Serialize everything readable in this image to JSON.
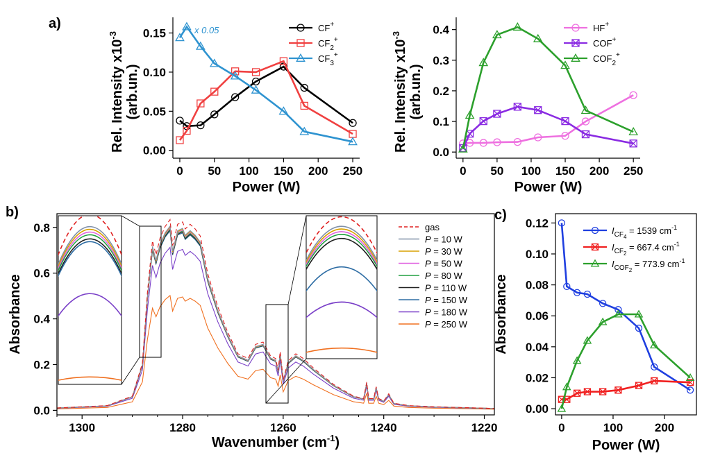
{
  "panel_labels": {
    "a": "a)",
    "b": "b)",
    "c": "c)"
  },
  "colors": {
    "CF+": "#000000",
    "CF2+": "#f04040",
    "CF3+": "#2e93d0",
    "HF+": "#ee70e0",
    "COF+": "#8a2be2",
    "COF2+": "#2ca02c",
    "gas": "#e02020"
  },
  "chart_data": [
    {
      "id": "a-left",
      "type": "line",
      "xlabel": "Power (W)",
      "ylabel_lines": [
        "Rel. Intensity x10",
        "(arb.un.)"
      ],
      "ylabel_exp": "-3",
      "xlim": [
        -10,
        260
      ],
      "ylim": [
        -0.01,
        0.17
      ],
      "xticks": [
        0,
        50,
        100,
        150,
        200,
        250
      ],
      "yticks": [
        0.0,
        0.05,
        0.1,
        0.15
      ],
      "ytick_labels": [
        "0.00",
        "0.05",
        "0.10",
        "0.15"
      ],
      "annotation": "x 0.05",
      "series": [
        {
          "name": "CF",
          "sup": "+",
          "marker": "circle",
          "color": "#000000",
          "x": [
            0,
            10,
            30,
            50,
            80,
            110,
            150,
            180,
            250
          ],
          "y": [
            0.038,
            0.031,
            0.032,
            0.046,
            0.068,
            0.088,
            0.107,
            0.08,
            0.035
          ]
        },
        {
          "name": "CF",
          "sub": "2",
          "sup": "+",
          "marker": "square",
          "color": "#f04040",
          "x": [
            0,
            10,
            30,
            50,
            80,
            110,
            150,
            180,
            250
          ],
          "y": [
            0.013,
            0.025,
            0.06,
            0.075,
            0.101,
            0.1,
            0.114,
            0.057,
            0.021
          ]
        },
        {
          "name": "CF",
          "sub": "3",
          "sup": "+",
          "marker": "triangle",
          "color": "#2e93d0",
          "x": [
            0,
            10,
            30,
            50,
            80,
            110,
            150,
            180,
            250
          ],
          "y": [
            0.144,
            0.158,
            0.133,
            0.111,
            0.095,
            0.077,
            0.05,
            0.024,
            0.011
          ]
        }
      ]
    },
    {
      "id": "a-right",
      "type": "line",
      "xlabel": "Power (W)",
      "ylabel_lines": [
        "Rel. Intensity x10",
        "(arb.un.)"
      ],
      "ylabel_exp": "-3",
      "xlim": [
        -10,
        260
      ],
      "ylim": [
        -0.02,
        0.44
      ],
      "xticks": [
        0,
        50,
        100,
        150,
        200,
        250
      ],
      "yticks": [
        0.0,
        0.1,
        0.2,
        0.3,
        0.4
      ],
      "ytick_labels": [
        "0.0",
        "0.1",
        "0.2",
        "0.3",
        "0.4"
      ],
      "series": [
        {
          "name": "HF",
          "sup": "+",
          "marker": "circle",
          "color": "#ee70e0",
          "x": [
            0,
            10,
            30,
            50,
            80,
            110,
            150,
            180,
            250
          ],
          "y": [
            0.028,
            0.03,
            0.03,
            0.032,
            0.033,
            0.048,
            0.053,
            0.1,
            0.186
          ]
        },
        {
          "name": "COF",
          "sup": "+",
          "marker": "boxx",
          "color": "#8a2be2",
          "x": [
            0,
            10,
            30,
            50,
            80,
            110,
            150,
            180,
            250
          ],
          "y": [
            0.013,
            0.06,
            0.101,
            0.125,
            0.148,
            0.137,
            0.101,
            0.058,
            0.028
          ]
        },
        {
          "name": "COF",
          "sub": "2",
          "sup": "+",
          "marker": "triangle",
          "color": "#2ca02c",
          "x": [
            0,
            10,
            30,
            50,
            80,
            110,
            150,
            180,
            250
          ],
          "y": [
            0.01,
            0.12,
            0.292,
            0.383,
            0.408,
            0.37,
            0.283,
            0.136,
            0.066
          ]
        }
      ]
    },
    {
      "id": "b",
      "type": "line",
      "xlabel": "Wavenumber (cm",
      "xlabel_exp": "-1",
      "xlabel_tail": ")",
      "ylabel": "Absorbance",
      "xlim": [
        1305,
        1218
      ],
      "ylim": [
        -0.02,
        0.86
      ],
      "xticks": [
        1300,
        1280,
        1260,
        1240,
        1220
      ],
      "yticks": [
        0.0,
        0.2,
        0.4,
        0.6,
        0.8
      ],
      "ytick_labels": [
        "0.0",
        "0.2",
        "0.4",
        "0.6",
        "0.8"
      ],
      "legend": [
        {
          "label": "gas",
          "color": "#e02020",
          "dashed": true
        },
        {
          "prefix": "P",
          "label": " = 10 W",
          "color": "#8090a8"
        },
        {
          "prefix": "P",
          "label": " = 30 W",
          "color": "#d9a000"
        },
        {
          "prefix": "P",
          "label": " = 50 W",
          "color": "#e060e0"
        },
        {
          "prefix": "P",
          "label": " = 80 W",
          "color": "#20a040"
        },
        {
          "prefix": "P",
          "label": " = 110 W",
          "color": "#202020"
        },
        {
          "prefix": "P",
          "label": " = 150 W",
          "color": "#2e6da4"
        },
        {
          "prefix": "P",
          "label": " = 180 W",
          "color": "#7a40c8"
        },
        {
          "prefix": "P",
          "label": " = 250 W",
          "color": "#f07020"
        }
      ],
      "spectrum_scales": [
        1.03,
        0.995,
        0.99,
        0.985,
        0.98,
        0.975,
        0.97,
        0.88,
        0.62
      ],
      "spectrum_base": {
        "x": [
          1305,
          1295,
          1290,
          1288,
          1287,
          1286,
          1285.3,
          1284.5,
          1283.5,
          1282.5,
          1282,
          1281,
          1280,
          1279.5,
          1278.5,
          1277.5,
          1276.5,
          1275,
          1273,
          1271,
          1269,
          1267,
          1265.5,
          1264,
          1262.5,
          1261.5,
          1261,
          1260.6,
          1260,
          1259,
          1257.5,
          1256,
          1254,
          1250,
          1246,
          1244,
          1243.4,
          1243,
          1242,
          1241.5,
          1241,
          1240,
          1239,
          1238,
          1235,
          1230,
          1218
        ],
        "y": [
          0.01,
          0.02,
          0.06,
          0.2,
          0.5,
          0.72,
          0.66,
          0.73,
          0.78,
          0.81,
          0.7,
          0.79,
          0.8,
          0.77,
          0.79,
          0.77,
          0.74,
          0.58,
          0.44,
          0.33,
          0.24,
          0.22,
          0.28,
          0.29,
          0.23,
          0.22,
          0.17,
          0.25,
          0.13,
          0.21,
          0.24,
          0.22,
          0.18,
          0.11,
          0.06,
          0.05,
          0.12,
          0.05,
          0.05,
          0.1,
          0.05,
          0.04,
          0.07,
          0.03,
          0.02,
          0.015,
          0.008
        ]
      }
    },
    {
      "id": "c",
      "type": "line",
      "xlabel": "Power (W)",
      "ylabel": "Absorbance",
      "xlim": [
        -12,
        262
      ],
      "ylim": [
        -0.004,
        0.126
      ],
      "xticks": [
        0,
        100,
        200
      ],
      "yticks": [
        0.0,
        0.02,
        0.04,
        0.06,
        0.08,
        0.1,
        0.12
      ],
      "ytick_labels": [
        "0.00",
        "0.02",
        "0.04",
        "0.06",
        "0.08",
        "0.10",
        "0.12"
      ],
      "series": [
        {
          "label_I": "I",
          "label_sub": "CF",
          "label_subsub": "4",
          "label_val": " = 1539 cm",
          "label_exp": "-1",
          "marker": "circle",
          "color": "#1f3fe0",
          "x": [
            0,
            10,
            30,
            50,
            80,
            110,
            150,
            180,
            250
          ],
          "y": [
            0.12,
            0.079,
            0.075,
            0.074,
            0.068,
            0.064,
            0.052,
            0.027,
            0.012
          ]
        },
        {
          "label_I": "I",
          "label_sub": "CF",
          "label_subsub": "2",
          "label_val": " = 667.4 cm",
          "label_exp": "-1",
          "marker": "boxx",
          "color": "#f02020",
          "x": [
            0,
            10,
            30,
            50,
            80,
            110,
            150,
            180,
            250
          ],
          "y": [
            0.006,
            0.006,
            0.01,
            0.011,
            0.011,
            0.012,
            0.015,
            0.018,
            0.017
          ]
        },
        {
          "label_I": "I",
          "label_sub": "COF",
          "label_subsub": "2",
          "label_val": " = 773.9 cm",
          "label_exp": "-1",
          "marker": "triangle",
          "color": "#2ca02c",
          "x": [
            0,
            10,
            30,
            50,
            80,
            110,
            150,
            180,
            250
          ],
          "y": [
            0.0,
            0.014,
            0.031,
            0.044,
            0.056,
            0.061,
            0.061,
            0.041,
            0.02
          ]
        }
      ]
    }
  ]
}
